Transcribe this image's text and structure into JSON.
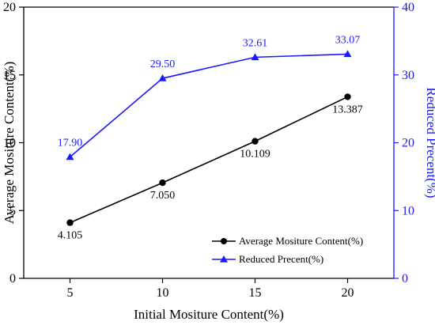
{
  "chart_data": {
    "type": "line",
    "x": [
      5,
      10,
      15,
      20
    ],
    "xlabel": "Initial Mositure Content(%)",
    "ylabel": "Average Mositure Content(%)",
    "y2label": "Reduced Precent(%)",
    "xlim": [
      2.5,
      22.5
    ],
    "ylim": [
      0,
      20
    ],
    "y2lim": [
      0,
      40
    ],
    "xticks": [
      5,
      10,
      15,
      20
    ],
    "yticks": [
      0,
      5,
      10,
      15,
      20
    ],
    "y2ticks": [
      0,
      10,
      20,
      30,
      40
    ],
    "grid": false,
    "legend_position": "bottom-right",
    "series": [
      {
        "name": "Average Mositure Content(%)",
        "axis": "left",
        "color": "#000000",
        "marker": "circle",
        "values": [
          4.105,
          7.05,
          10.109,
          13.387
        ],
        "labels": [
          "4.105",
          "7.050",
          "10.109",
          "13.387"
        ]
      },
      {
        "name": "Reduced Precent(%)",
        "axis": "right",
        "color": "#1a1aff",
        "marker": "triangle",
        "values": [
          17.9,
          29.5,
          32.61,
          33.07
        ],
        "labels": [
          "17.90",
          "29.50",
          "32.61",
          "33.07"
        ]
      }
    ]
  }
}
